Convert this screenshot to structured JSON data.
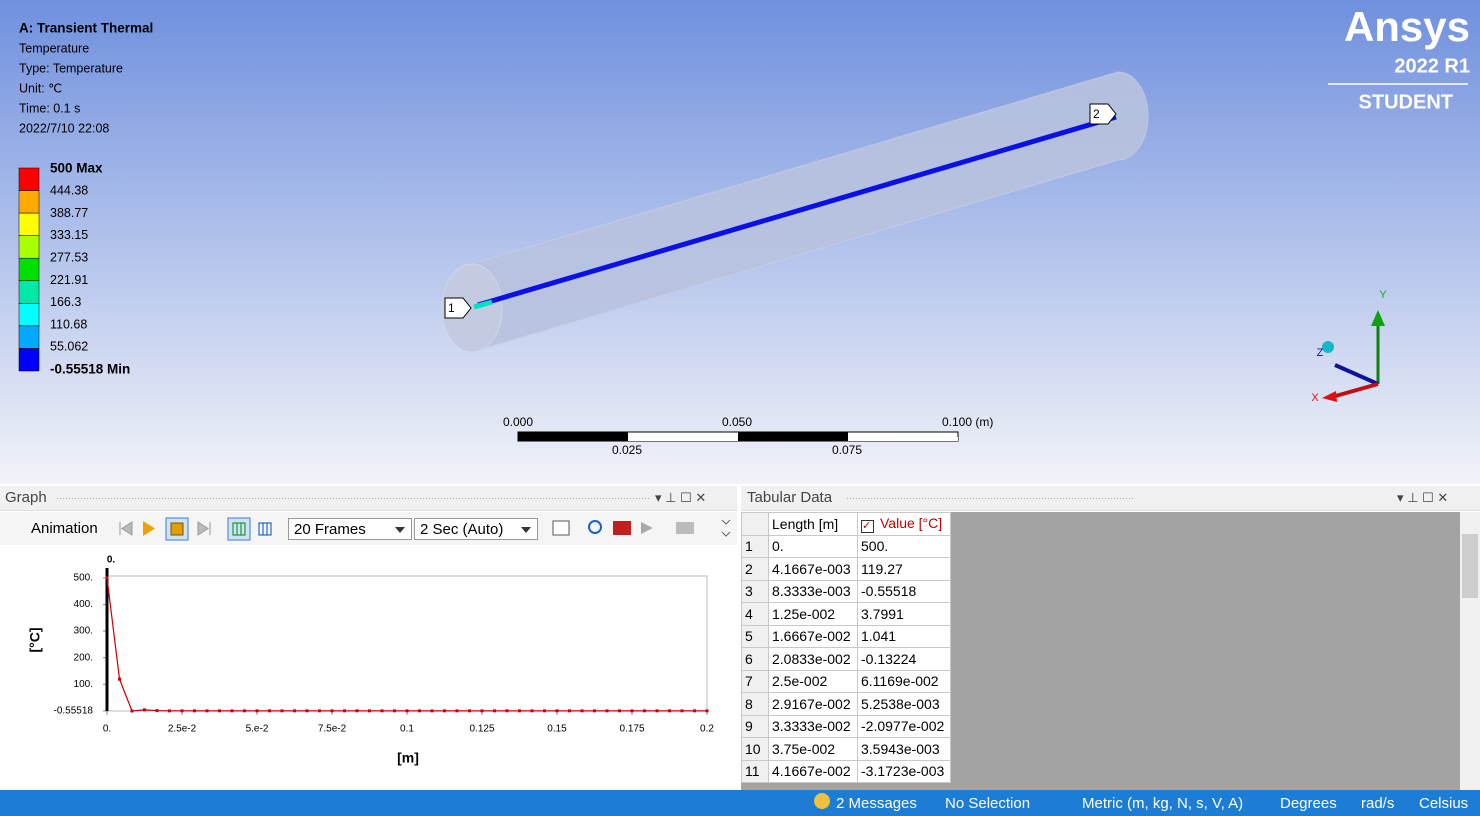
{
  "viewport": {
    "info": [
      "A: Transient Thermal",
      "Temperature",
      "Type: Temperature",
      "Unit: ℃",
      "Time: 0.1 s",
      "2022/7/10 22:08"
    ],
    "legend": {
      "labels": [
        "500 Max",
        "444.38",
        "388.77",
        "333.15",
        "277.53",
        "221.91",
        "166.3",
        "110.68",
        "55.062",
        "-0.55518 Min"
      ],
      "colors": [
        "#ff0000",
        "#ffaa00",
        "#ffff00",
        "#aaff00",
        "#00e000",
        "#00e8a8",
        "#00ffff",
        "#00aaff",
        "#0000ff"
      ]
    },
    "logo": {
      "brand": "Ansys",
      "version": "2022 R1",
      "edition": "STUDENT"
    },
    "probes": [
      "1",
      "2"
    ],
    "scale": {
      "top": [
        "0.000",
        "0.050",
        "0.100 (m)"
      ],
      "bottom": [
        "0.025",
        "0.075"
      ]
    },
    "triad": [
      "Y",
      "Z",
      "X"
    ]
  },
  "graph": {
    "title": "Graph",
    "animation": "Animation",
    "frames": "20 Frames",
    "duration": "2 Sec (Auto)"
  },
  "chart_data": {
    "type": "line",
    "xlabel": "[m]",
    "ylabel": "[°C]",
    "color": "#cc0000",
    "cursor": {
      "value": 0,
      "label": "0."
    },
    "xlim": [
      0,
      0.2
    ],
    "ylim": [
      -0.55518,
      507
    ],
    "xticks": [
      {
        "value": 0,
        "label": "0."
      },
      {
        "value": 0.025,
        "label": "2.5e-2"
      },
      {
        "value": 0.05,
        "label": "5.e-2"
      },
      {
        "value": 0.075,
        "label": "7.5e-2"
      },
      0.1,
      0.125,
      0.15,
      0.175,
      0.2
    ],
    "yticks": [
      {
        "value": 500,
        "label": "500."
      },
      {
        "value": 400,
        "label": "400."
      },
      {
        "value": 300,
        "label": "300."
      },
      {
        "value": 200,
        "label": "200."
      },
      {
        "value": 100,
        "label": "100."
      },
      -0.55518
    ],
    "x": [
      0,
      0.0041667,
      0.0083333,
      0.0125,
      0.0166667,
      0.0208333,
      0.025,
      0.0291667,
      0.0333333,
      0.0375,
      0.0416667,
      0.0458333,
      0.05,
      0.0541667,
      0.0583333,
      0.0625,
      0.0666667,
      0.0708333,
      0.075,
      0.0791667,
      0.0833333,
      0.0875,
      0.0916667,
      0.0958333,
      0.1,
      0.1041667,
      0.1083333,
      0.1125,
      0.1166667,
      0.1208333,
      0.125,
      0.1291667,
      0.1333333,
      0.1375,
      0.1416667,
      0.1458333,
      0.15,
      0.1541667,
      0.1583333,
      0.1625,
      0.1666667,
      0.1708333,
      0.175,
      0.1791667,
      0.1833333,
      0.1875,
      0.1916667,
      0.1958333,
      0.2
    ],
    "values": [
      500,
      119.27,
      -0.55518,
      3.7991,
      1.041,
      -0.13224,
      0.061169,
      0.0052538,
      -0.020977,
      0.0035943,
      -0.0031723,
      0,
      0,
      0,
      0,
      0,
      0,
      0,
      0,
      0,
      0,
      0,
      0,
      0,
      0,
      0,
      0,
      0,
      0,
      0,
      0,
      0,
      0,
      0,
      0,
      0,
      0,
      0,
      0,
      0,
      0,
      0,
      0,
      0,
      0,
      0,
      0,
      0,
      0
    ]
  },
  "tabular": {
    "title": "Tabular Data",
    "headers": [
      "Length [m]",
      "Value [°C]"
    ],
    "rows": [
      [
        "1",
        "0.",
        "500."
      ],
      [
        "2",
        "4.1667e-003",
        "119.27"
      ],
      [
        "3",
        "8.3333e-003",
        "-0.55518"
      ],
      [
        "4",
        "1.25e-002",
        "3.7991"
      ],
      [
        "5",
        "1.6667e-002",
        "1.041"
      ],
      [
        "6",
        "2.0833e-002",
        "-0.13224"
      ],
      [
        "7",
        "2.5e-002",
        "6.1169e-002"
      ],
      [
        "8",
        "2.9167e-002",
        "5.2538e-003"
      ],
      [
        "9",
        "3.3333e-002",
        "-2.0977e-002"
      ],
      [
        "10",
        "3.75e-002",
        "3.5943e-003"
      ],
      [
        "11",
        "4.1667e-002",
        "-3.1723e-003"
      ]
    ]
  },
  "status": [
    "2 Messages",
    "No Selection",
    "Metric (m, kg, N, s, V, A)",
    "Degrees",
    "rad/s",
    "Celsius"
  ]
}
